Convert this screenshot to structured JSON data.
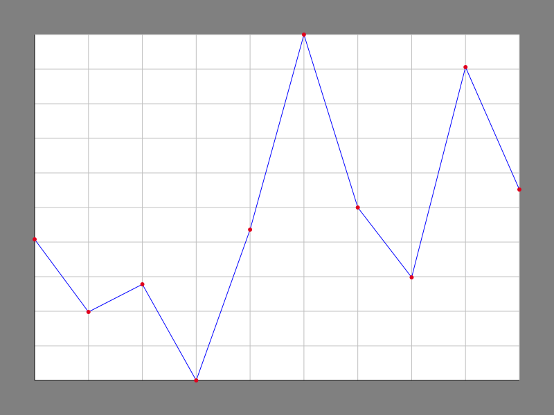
{
  "colors": {
    "background": "#808080",
    "plot_area": "#ffffff",
    "grid": "#c0c0c0",
    "axis": "#000000",
    "line": "#0000ff",
    "marker": "#e0001c"
  },
  "chart_data": {
    "type": "line",
    "title": "",
    "xlabel": "",
    "ylabel": "",
    "grid": true,
    "x": [
      0,
      1,
      2,
      3,
      4,
      5,
      6,
      7,
      8,
      9
    ],
    "xlim": [
      0,
      9
    ],
    "ylim": [
      0,
      10
    ],
    "x_gridlines": 9,
    "y_gridlines": 10,
    "series": [
      {
        "values": [
          4.08,
          1.98,
          2.78,
          0.0,
          4.36,
          10.0,
          5.0,
          2.98,
          9.06,
          5.52
        ],
        "line_color": "#0000ff",
        "marker_color": "#e0001c"
      }
    ]
  }
}
